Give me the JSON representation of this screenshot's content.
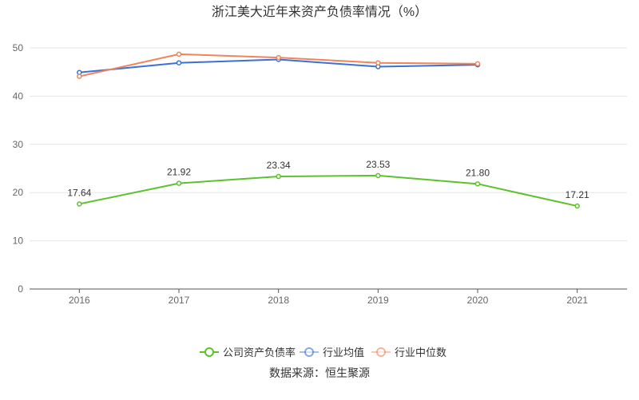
{
  "chart_data": {
    "type": "line",
    "title": "浙江美大近年来资产负债率情况（%）",
    "xlabel": "",
    "ylabel": "",
    "categories": [
      "2016",
      "2017",
      "2018",
      "2019",
      "2020",
      "2021"
    ],
    "ylim": [
      0,
      50
    ],
    "yticks": [
      0,
      10,
      20,
      30,
      40,
      50
    ],
    "grid": true,
    "legend_position": "bottom",
    "series": [
      {
        "name": "公司资产负债率",
        "color": "#5cc22a",
        "values": [
          17.64,
          21.92,
          23.34,
          23.53,
          21.8,
          17.21
        ],
        "labels": [
          "17.64",
          "21.92",
          "23.34",
          "23.53",
          "21.80",
          "17.21"
        ],
        "show_labels": true
      },
      {
        "name": "行业均值",
        "color": "#3c6fd8",
        "values": [
          44.9,
          46.9,
          47.6,
          46.1,
          46.5,
          null
        ],
        "show_labels": false
      },
      {
        "name": "行业中位数",
        "color": "#f0845a",
        "values": [
          44.1,
          48.7,
          48.0,
          46.9,
          46.7,
          null
        ],
        "show_labels": false
      }
    ],
    "source": "数据来源：恒生聚源"
  }
}
